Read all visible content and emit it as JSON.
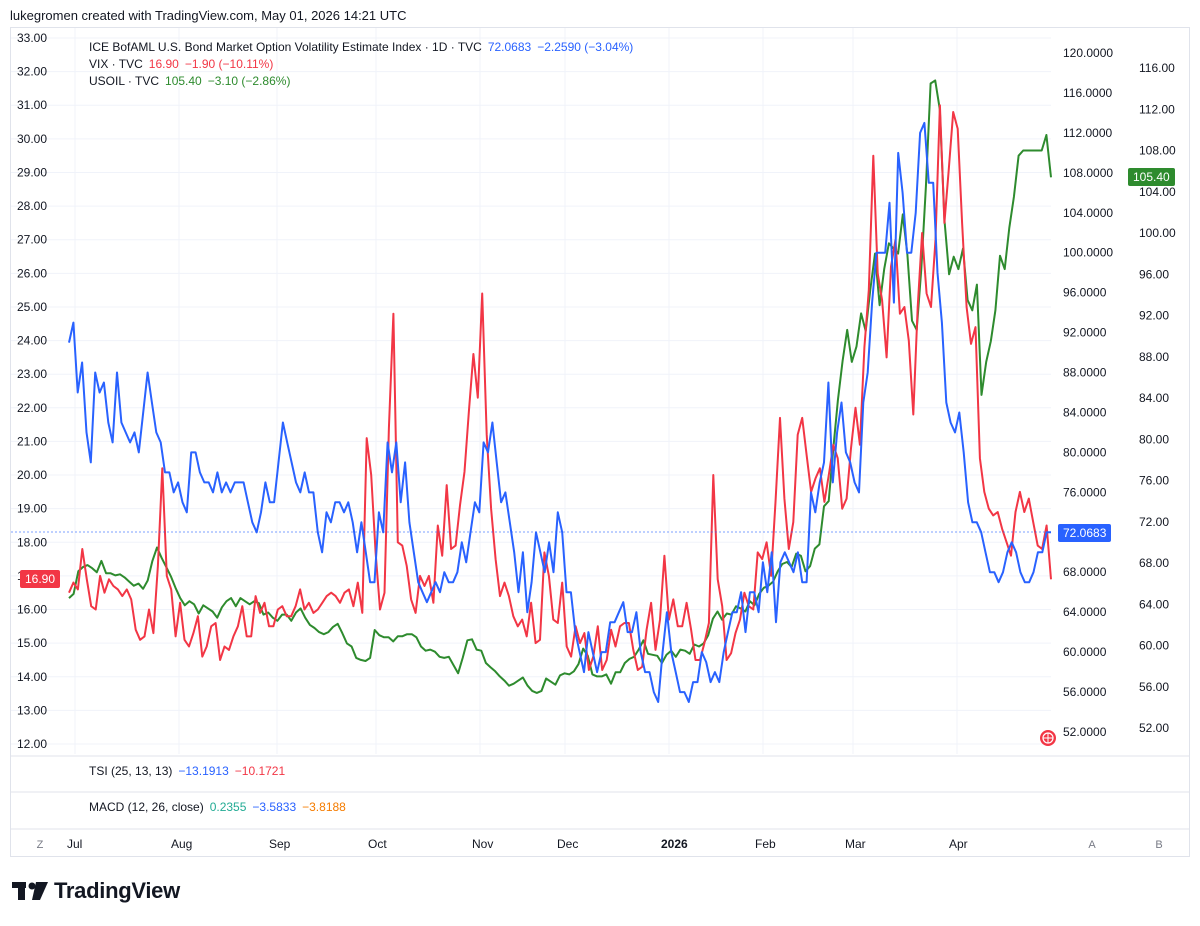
{
  "header": {
    "text": "lukegromen created with TradingView.com, May 01, 2026 14:21 UTC"
  },
  "legend": {
    "bond": {
      "name": "ICE BofAML U.S. Bond Market Option Volatility Estimate Index · 1D · TVC",
      "value": "72.0683",
      "change": "−2.2590 (−3.04%)"
    },
    "vix": {
      "name": "VIX · TVC",
      "value": "16.90",
      "change": "−1.90 (−10.11%)"
    },
    "oil": {
      "name": "USOIL · TVC",
      "value": "105.40",
      "change": "−3.10 (−2.86%)"
    }
  },
  "panes": {
    "tsi": {
      "name": "TSI (25, 13, 13)",
      "v1": "−13.1913",
      "v2": "−10.1721"
    },
    "macd": {
      "name": "MACD (12, 26, close)",
      "v1": "0.2355",
      "v2": "−3.5833",
      "v3": "−3.8188"
    }
  },
  "price_tags": {
    "vix": "16.90",
    "bond": "72.0683",
    "oil": "105.40"
  },
  "buttons": {
    "z": "Z",
    "a": "A",
    "b": "B"
  },
  "brand": {
    "name": "TradingView"
  },
  "colors": {
    "bond": "#2962ff",
    "vix": "#f23645",
    "oil": "#2e8b2e",
    "macd_signal": "#f57c00",
    "macd_line": "#22ab94"
  },
  "chart_data": {
    "type": "line",
    "x_labels": [
      "Jul",
      "Aug",
      "Sep",
      "Oct",
      "Nov",
      "Dec",
      "2026",
      "Feb",
      "Mar",
      "Apr"
    ],
    "axes": {
      "vix_left": {
        "min": 12,
        "max": 33,
        "ticks": [
          "12.00",
          "13.00",
          "14.00",
          "15.00",
          "16.00",
          "17.00",
          "18.00",
          "19.00",
          "20.00",
          "21.00",
          "22.00",
          "23.00",
          "24.00",
          "25.00",
          "26.00",
          "27.00",
          "28.00",
          "29.00",
          "30.00",
          "31.00",
          "32.00",
          "33.00"
        ]
      },
      "bond_right_inner": {
        "min": 52,
        "max": 120,
        "ticks": [
          "52.0000",
          "56.0000",
          "60.0000",
          "64.0000",
          "68.0000",
          "72.0000",
          "76.0000",
          "80.0000",
          "84.0000",
          "88.0000",
          "92.0000",
          "96.0000",
          "100.0000",
          "104.0000",
          "108.0000",
          "112.0000",
          "116.0000",
          "120.0000"
        ]
      },
      "oil_right_outer": {
        "min": 52,
        "max": 116,
        "ticks": [
          "52.00",
          "56.00",
          "60.00",
          "64.00",
          "68.00",
          "72.00",
          "76.00",
          "80.00",
          "84.00",
          "88.00",
          "92.00",
          "96.00",
          "100.00",
          "104.00",
          "108.00",
          "112.00",
          "116.00"
        ]
      }
    },
    "series": [
      {
        "name": "ICE BofAML U.S. Bond Market Option Volatility Estimate Index",
        "axis": "bond_right_inner",
        "values": [
          91,
          93,
          86,
          89,
          82,
          79,
          88,
          86,
          87,
          83,
          81,
          88,
          83,
          82,
          81,
          82,
          80,
          84,
          88,
          85,
          82,
          81,
          78,
          78,
          76,
          77,
          75,
          74,
          80,
          80,
          78,
          77,
          77,
          76,
          78,
          76,
          77,
          76,
          77,
          77,
          77,
          75,
          73,
          72,
          74,
          77,
          75,
          75,
          79,
          83,
          81,
          79,
          77,
          76,
          78,
          76,
          76,
          72,
          70,
          74,
          73,
          75,
          75,
          74,
          75,
          73,
          70,
          73,
          70,
          67,
          67,
          74,
          72,
          81,
          78,
          81,
          75,
          79,
          73,
          70,
          67,
          66,
          65,
          66,
          67,
          66,
          68,
          67,
          67,
          68,
          71,
          69,
          72,
          75,
          74,
          81,
          80,
          83,
          79,
          75,
          76,
          73,
          70,
          66,
          70,
          64,
          67,
          72,
          70,
          68,
          71,
          68,
          74,
          72,
          66,
          66,
          62,
          60,
          58,
          62,
          60,
          58,
          60,
          60,
          63,
          63,
          64,
          65,
          62,
          62,
          64,
          60,
          58,
          58,
          56,
          55,
          60,
          64,
          60,
          58,
          56,
          56,
          55,
          57,
          57,
          60,
          59,
          57,
          58,
          57,
          60,
          62,
          64,
          64,
          66,
          62,
          66,
          66,
          64,
          69,
          66,
          70,
          63,
          69,
          70,
          69,
          68,
          70,
          67,
          67,
          76,
          74,
          77,
          79,
          87,
          77,
          82,
          85,
          80,
          79,
          77,
          76,
          85,
          88,
          95,
          100,
          100,
          100,
          105,
          95,
          110,
          106,
          100,
          100,
          104,
          112,
          113,
          107,
          107,
          98,
          93,
          85,
          83,
          82,
          84,
          80,
          75,
          73,
          73,
          72,
          70,
          68,
          68,
          67,
          68,
          70,
          71,
          70,
          68,
          67,
          67,
          68,
          70,
          70,
          72,
          72
        ]
      },
      {
        "name": "VIX",
        "axis": "vix_left",
        "values": [
          16.5,
          16.8,
          16.6,
          17.8,
          16.9,
          16.1,
          16.0,
          17.0,
          16.5,
          16.9,
          16.7,
          16.6,
          16.4,
          16.6,
          16.3,
          15.4,
          15.1,
          15.2,
          16.0,
          15.3,
          17.3,
          20.2,
          17.0,
          16.6,
          15.2,
          16.2,
          15.1,
          14.9,
          15.3,
          15.8,
          14.6,
          14.9,
          15.5,
          15.6,
          14.5,
          14.9,
          14.8,
          15.2,
          15.5,
          16.1,
          15.2,
          15.2,
          16.4,
          15.9,
          16.2,
          15.5,
          15.5,
          16.0,
          16.1,
          15.8,
          15.8,
          16.1,
          16.6,
          16.0,
          16.2,
          15.9,
          16.0,
          16.2,
          16.4,
          16.5,
          16.4,
          16.2,
          16.5,
          16.6,
          16.1,
          16.8,
          15.9,
          21.1,
          20.0,
          17.7,
          16.0,
          16.5,
          21.4,
          24.8,
          18.0,
          17.9,
          17.3,
          16.3,
          15.9,
          17.0,
          16.7,
          17.0,
          16.2,
          18.5,
          17.6,
          19.7,
          17.8,
          17.9,
          19.1,
          20.1,
          21.9,
          23.6,
          22.3,
          25.4,
          21.2,
          19.0,
          17.5,
          16.4,
          16.8,
          16.4,
          15.8,
          15.5,
          15.7,
          15.2,
          16.2,
          15.0,
          15.1,
          17.7,
          17.0,
          15.7,
          15.6,
          16.8,
          14.9,
          14.6,
          15.5,
          15.0,
          15.3,
          14.2,
          14.6,
          15.5,
          14.2,
          14.5,
          15.4,
          14.9,
          15.5,
          15.6,
          15.6,
          14.8,
          14.2,
          14.3,
          15.4,
          16.2,
          14.8,
          15.7,
          17.6,
          15.7,
          16.3,
          15.5,
          15.5,
          16.2,
          15.4,
          14.5,
          14.5,
          15.0,
          15.6,
          20.0,
          16.9,
          16.1,
          14.5,
          14.7,
          15.3,
          15.7,
          16.5,
          16.1,
          16.0,
          17.7,
          17.5,
          18.0,
          17.0,
          19.2,
          21.7,
          19.3,
          17.8,
          18.6,
          21.2,
          21.7,
          20.6,
          19.5,
          19.9,
          20.2,
          19.2,
          20.0,
          20.9,
          20.5,
          19.0,
          19.3,
          20.8,
          22.0,
          20.9,
          23.8,
          25.5,
          29.5,
          26.0,
          25.2,
          23.5,
          26.2,
          27.0,
          24.8,
          25.0,
          24.0,
          21.8,
          25.0,
          27.2,
          25.4,
          25.0,
          27.0,
          31.0,
          27.5,
          29.1,
          30.8,
          30.3,
          27.5,
          25.0,
          23.9,
          24.4,
          20.5,
          19.5,
          19.0,
          18.8,
          18.9,
          18.4,
          18.0,
          17.6,
          18.9,
          19.5,
          18.9,
          19.3,
          18.6,
          17.9,
          17.8,
          18.5,
          16.9
        ]
      },
      {
        "name": "USOIL",
        "axis": "oil_right_outer",
        "values": [
          64.6,
          65.0,
          67.2,
          67.6,
          67.8,
          67.5,
          67.1,
          68.2,
          67.0,
          67.0,
          66.8,
          66.9,
          66.6,
          66.2,
          65.8,
          66.0,
          65.5,
          66.3,
          68.2,
          69.5,
          68.5,
          67.6,
          66.7,
          65.6,
          64.6,
          63.9,
          64.3,
          64.0,
          63.1,
          63.9,
          63.6,
          63.3,
          62.7,
          63.7,
          64.3,
          64.6,
          63.8,
          64.6,
          64.3,
          64.0,
          64.3,
          64.1,
          63.0,
          63.2,
          62.7,
          62.4,
          63.0,
          63.0,
          62.4,
          63.2,
          63.6,
          62.7,
          62.0,
          61.7,
          61.3,
          61.1,
          61.3,
          61.8,
          62.1,
          61.2,
          60.2,
          59.9,
          58.8,
          58.6,
          58.5,
          58.8,
          61.5,
          61.0,
          60.8,
          60.8,
          60.4,
          60.9,
          60.9,
          61.1,
          61.1,
          60.8,
          59.9,
          59.5,
          59.6,
          59.4,
          58.9,
          58.8,
          58.9,
          58.1,
          57.3,
          58.8,
          60.5,
          60.6,
          59.6,
          59.5,
          58.3,
          57.9,
          57.5,
          57.0,
          56.6,
          56.1,
          56.3,
          56.6,
          56.9,
          56.1,
          55.6,
          55.4,
          55.6,
          56.8,
          56.5,
          56.2,
          57.1,
          57.3,
          57.2,
          57.5,
          58.2,
          59.7,
          59.0,
          57.2,
          57.0,
          57.0,
          57.2,
          56.3,
          57.4,
          57.4,
          58.3,
          58.7,
          58.9,
          59.6,
          60.5,
          59.2,
          59.1,
          59.0,
          58.3,
          59.1,
          59.5,
          58.9,
          59.6,
          59.5,
          59.2,
          60.1,
          59.9,
          60.2,
          61.0,
          62.6,
          63.3,
          62.5,
          63.1,
          63.0,
          63.8,
          63.6,
          63.3,
          64.3,
          63.9,
          65.0,
          65.6,
          65.8,
          66.2,
          67.2,
          67.9,
          68.1,
          67.6,
          68.9,
          68.7,
          67.2,
          67.7,
          69.4,
          69.8,
          73.5,
          74.0,
          79.1,
          83.8,
          87.6,
          90.6,
          87.5,
          89.0,
          92.2,
          90.5,
          94.5,
          98.0,
          93.0,
          96.5,
          99.0,
          98.5,
          98.0,
          101.8,
          97.9,
          91.5,
          90.6,
          96.5,
          104.5,
          114.5,
          114.8,
          112.0,
          101.2,
          96.0,
          97.7,
          96.5,
          98.5,
          93.5,
          92.5,
          95.0,
          84.3,
          87.5,
          89.5,
          92.5,
          97.8,
          96.5,
          100.5,
          103.5,
          107.5,
          108.0,
          108.0,
          108.0,
          108.0,
          108.0,
          109.5,
          105.4
        ]
      }
    ]
  }
}
